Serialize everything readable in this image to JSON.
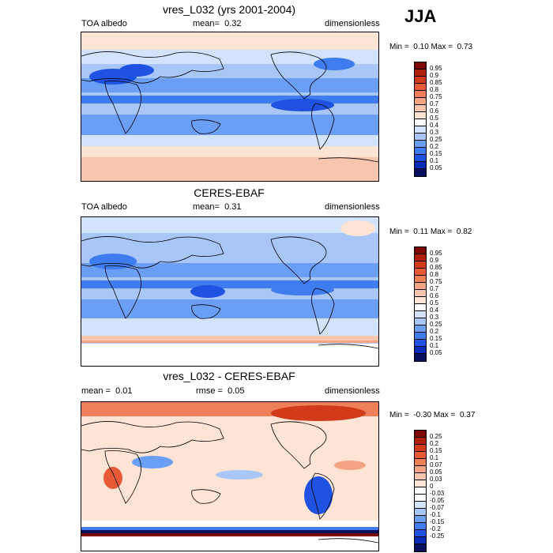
{
  "season": "JJA",
  "colors": {
    "albedo_palette": [
      "#08105e",
      "#0a2ab8",
      "#1f52e0",
      "#3f7cf0",
      "#6b9ef5",
      "#a8c6f8",
      "#d3e3fb",
      "#ffffff",
      "#fde4d4",
      "#f8c6ae",
      "#f4a483",
      "#ee7f58",
      "#e65a36",
      "#d23b1a",
      "#b0200c",
      "#7a0b04"
    ],
    "diff_palette": [
      "#08105e",
      "#0a2ab8",
      "#1f52e0",
      "#3f7cf0",
      "#6b9ef5",
      "#a8c6f8",
      "#d3e3fb",
      "#ffffff",
      "#ffffff",
      "#fde4d4",
      "#f8c6ae",
      "#f4a483",
      "#ee7f58",
      "#e65a36",
      "#d23b1a",
      "#b0200c",
      "#7a0b04"
    ]
  },
  "panels": [
    {
      "title": "vres_L032 (yrs 2001-2004)",
      "left_label": "TOA albedo",
      "mean_label": "mean=",
      "mean_value": "0.32",
      "right_label": "dimensionless",
      "min_label": "Min =",
      "min_value": "0.10",
      "max_label": "Max =",
      "max_value": "0.73",
      "colorbar_levels": [
        "0.95",
        "0.9",
        "0.85",
        "0.8",
        "0.75",
        "0.7",
        "0.6",
        "0.5",
        "0.4",
        "0.3",
        "0.25",
        "0.2",
        "0.15",
        "0.1",
        "0.05"
      ]
    },
    {
      "title": "CERES-EBAF",
      "left_label": "TOA albedo",
      "mean_label": "mean=",
      "mean_value": "0.31",
      "right_label": "dimensionless",
      "min_label": "Min =",
      "min_value": "0.11",
      "max_label": "Max =",
      "max_value": "0.82",
      "colorbar_levels": [
        "0.95",
        "0.9",
        "0.85",
        "0.8",
        "0.75",
        "0.7",
        "0.6",
        "0.5",
        "0.4",
        "0.3",
        "0.25",
        "0.2",
        "0.15",
        "0.1",
        "0.05"
      ]
    },
    {
      "title": "vres_L032 - CERES-EBAF",
      "left_label": "mean =",
      "left_value": "0.01",
      "mean_label": "rmse =",
      "mean_value": "0.05",
      "right_label": "dimensionless",
      "min_label": "Min =",
      "min_value": "-0.30",
      "max_label": "Max =",
      "max_value": "0.37",
      "colorbar_levels": [
        "0.25",
        "0.2",
        "0.15",
        "0.1",
        "0.07",
        "0.05",
        "0.03",
        "0",
        "-0.03",
        "-0.05",
        "-0.07",
        "-0.1",
        "-0.15",
        "-0.2",
        "-0.25"
      ]
    }
  ],
  "chart_data": [
    {
      "type": "heatmap",
      "title": "vres_L032 (yrs 2001-2004)",
      "variable": "TOA albedo",
      "units": "dimensionless",
      "mean": 0.32,
      "min": 0.1,
      "max": 0.73,
      "levels": [
        0.05,
        0.1,
        0.15,
        0.2,
        0.25,
        0.3,
        0.4,
        0.5,
        0.6,
        0.7,
        0.75,
        0.8,
        0.85,
        0.9,
        0.95
      ]
    },
    {
      "type": "heatmap",
      "title": "CERES-EBAF",
      "variable": "TOA albedo",
      "units": "dimensionless",
      "mean": 0.31,
      "min": 0.11,
      "max": 0.82,
      "levels": [
        0.05,
        0.1,
        0.15,
        0.2,
        0.25,
        0.3,
        0.4,
        0.5,
        0.6,
        0.7,
        0.75,
        0.8,
        0.85,
        0.9,
        0.95
      ]
    },
    {
      "type": "heatmap",
      "title": "vres_L032 - CERES-EBAF",
      "units": "dimensionless",
      "mean": 0.01,
      "rmse": 0.05,
      "min": -0.3,
      "max": 0.37,
      "levels": [
        -0.25,
        -0.2,
        -0.15,
        -0.1,
        -0.07,
        -0.05,
        -0.03,
        0,
        0.03,
        0.05,
        0.07,
        0.1,
        0.15,
        0.2,
        0.25
      ]
    }
  ]
}
